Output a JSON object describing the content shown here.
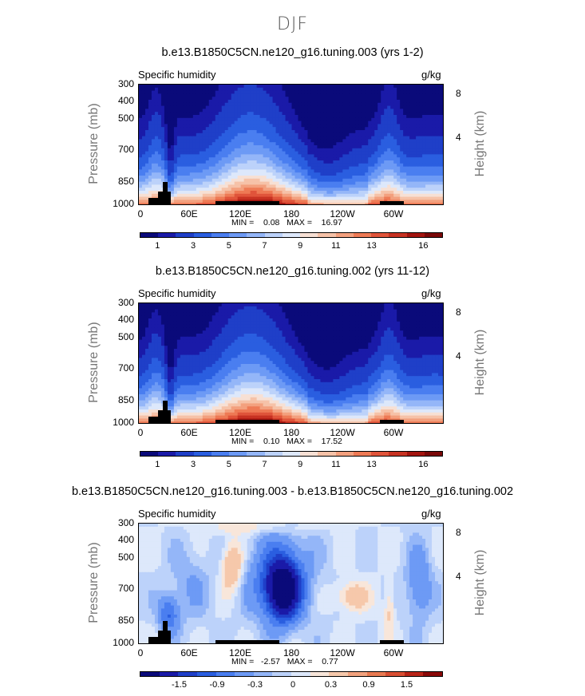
{
  "page_title": "DJF",
  "panels": [
    {
      "title": "b.e13.B1850C5CN.ne120_g16.tuning.003 (yrs 1-2)",
      "variable": "Specific humidity",
      "units": "g/kg",
      "ylabel": "Pressure (mb)",
      "ylabel_right": "Height (km)",
      "yticks": [
        "300",
        "400",
        "500",
        "700",
        "850",
        "1000"
      ],
      "yticks_right": [
        "8",
        "4"
      ],
      "xticks": [
        "0",
        "60E",
        "120E",
        "180",
        "120W",
        "60W"
      ],
      "minmax": "MIN =    0.08   MAX =    16.97",
      "colorbar_labels": [
        "1",
        "3",
        "5",
        "7",
        "9",
        "11",
        "13",
        "16"
      ],
      "kind": "abs"
    },
    {
      "title": "b.e13.B1850C5CN.ne120_g16.tuning.002 (yrs 11-12)",
      "variable": "Specific humidity",
      "units": "g/kg",
      "ylabel": "Pressure (mb)",
      "ylabel_right": "Height (km)",
      "yticks": [
        "300",
        "400",
        "500",
        "700",
        "850",
        "1000"
      ],
      "yticks_right": [
        "8",
        "4"
      ],
      "xticks": [
        "0",
        "60E",
        "120E",
        "180",
        "120W",
        "60W"
      ],
      "minmax": "MIN =    0.10   MAX =    17.52",
      "colorbar_labels": [
        "1",
        "3",
        "5",
        "7",
        "9",
        "11",
        "13",
        "16"
      ],
      "kind": "abs"
    },
    {
      "title": "b.e13.B1850C5CN.ne120_g16.tuning.003 - b.e13.B1850C5CN.ne120_g16.tuning.002",
      "variable": "Specific humidity",
      "units": "g/kg",
      "ylabel": "Pressure (mb)",
      "ylabel_right": "Height (km)",
      "yticks": [
        "300",
        "400",
        "500",
        "700",
        "850",
        "1000"
      ],
      "yticks_right": [
        "8",
        "4"
      ],
      "xticks": [
        "0",
        "60E",
        "120E",
        "180",
        "120W",
        "60W"
      ],
      "minmax": "MIN =   -2.57   MAX =    0.77",
      "colorbar_labels": [
        "-1.5",
        "-0.9",
        "-0.3",
        "0",
        "0.3",
        "0.9",
        "1.5"
      ],
      "kind": "diff"
    }
  ],
  "colors": {
    "abs_scale": [
      "#0a0a7a",
      "#1a1aa8",
      "#1f3fc8",
      "#2a5ee0",
      "#4a7ef0",
      "#6d9af5",
      "#94b6f8",
      "#bcd2fa",
      "#dde8fb",
      "#f7e0d4",
      "#f6c2a8",
      "#f3a07e",
      "#ee7a55",
      "#e0543a",
      "#c73222",
      "#a3140f",
      "#7a0808"
    ],
    "diff_scale": [
      "#0a0a7a",
      "#1a1aa8",
      "#1f3fc8",
      "#2a5ee0",
      "#4a7ef0",
      "#6d9af5",
      "#94b6f8",
      "#bcd2fa",
      "#dde8fb",
      "#f8e6da",
      "#f6c8ab",
      "#f2a27e",
      "#e97a52",
      "#d84e33",
      "#b82418",
      "#8a0808"
    ]
  },
  "chart_data": [
    {
      "type": "heatmap",
      "title": "b.e13.B1850C5CN.ne120_g16.tuning.003 (yrs 1-2)",
      "ylabel": "Pressure (mb)",
      "x": [
        "0",
        "60E",
        "120E",
        "180",
        "120W",
        "60W"
      ],
      "y": [
        300,
        400,
        500,
        700,
        850,
        1000
      ],
      "min": 0.08,
      "max": 16.97,
      "levels": [
        1,
        3,
        5,
        7,
        9,
        11,
        13,
        16
      ],
      "units": "g/kg"
    },
    {
      "type": "heatmap",
      "title": "b.e13.B1850C5CN.ne120_g16.tuning.002 (yrs 11-12)",
      "ylabel": "Pressure (mb)",
      "x": [
        "0",
        "60E",
        "120E",
        "180",
        "120W",
        "60W"
      ],
      "y": [
        300,
        400,
        500,
        700,
        850,
        1000
      ],
      "min": 0.1,
      "max": 17.52,
      "levels": [
        1,
        3,
        5,
        7,
        9,
        11,
        13,
        16
      ],
      "units": "g/kg"
    },
    {
      "type": "heatmap",
      "title": "b.e13.B1850C5CN.ne120_g16.tuning.003 - b.e13.B1850C5CN.ne120_g16.tuning.002",
      "ylabel": "Pressure (mb)",
      "x": [
        "0",
        "60E",
        "120E",
        "180",
        "120W",
        "60W"
      ],
      "y": [
        300,
        400,
        500,
        700,
        850,
        1000
      ],
      "min": -2.57,
      "max": 0.77,
      "levels": [
        -1.5,
        -0.9,
        -0.3,
        0,
        0.3,
        0.9,
        1.5
      ],
      "units": "g/kg"
    }
  ]
}
